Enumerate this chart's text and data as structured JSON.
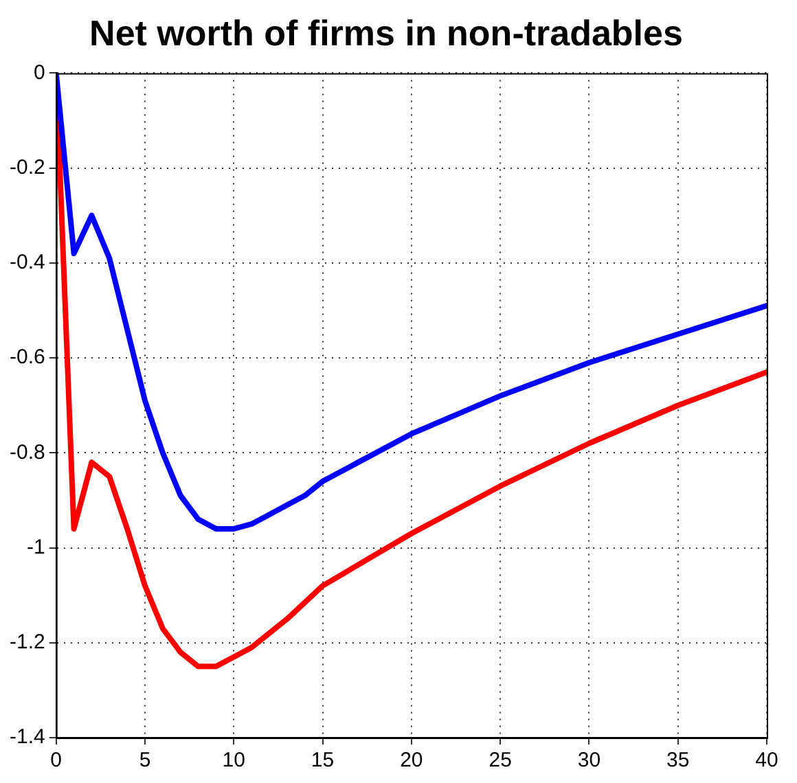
{
  "chart_data": {
    "type": "line",
    "title": "Net worth of firms in non-tradables",
    "xlim": [
      0,
      40
    ],
    "xticks": [
      0,
      5,
      10,
      15,
      20,
      25,
      30,
      35,
      40
    ],
    "ylim": [
      -1.4,
      0
    ],
    "yticks": [
      -1.4,
      -1.2,
      -1,
      -0.8,
      -0.6,
      -0.4,
      -0.2,
      0
    ],
    "grid": true,
    "line_style": "solid",
    "marker": "none",
    "series": [
      {
        "color": "#0000ff",
        "x": [
          0,
          1,
          2,
          3,
          4,
          5,
          6,
          7,
          8,
          9,
          10,
          11,
          12,
          13,
          14,
          15,
          17,
          20,
          25,
          30,
          35,
          40
        ],
        "values": [
          0,
          -0.38,
          -0.3,
          -0.39,
          -0.54,
          -0.69,
          -0.8,
          -0.89,
          -0.94,
          -0.96,
          -0.96,
          -0.95,
          -0.93,
          -0.91,
          -0.89,
          -0.86,
          -0.82,
          -0.76,
          -0.68,
          -0.61,
          -0.55,
          -0.49
        ]
      },
      {
        "color": "#ff0000",
        "x": [
          0,
          1,
          2,
          3,
          4,
          5,
          6,
          7,
          8,
          9,
          10,
          11,
          12,
          13,
          15,
          20,
          25,
          30,
          35,
          40
        ],
        "values": [
          0,
          -0.96,
          -0.82,
          -0.85,
          -0.96,
          -1.08,
          -1.17,
          -1.22,
          -1.25,
          -1.25,
          -1.23,
          -1.21,
          -1.18,
          -1.15,
          -1.08,
          -0.97,
          -0.87,
          -0.78,
          -0.7,
          -0.63
        ]
      }
    ]
  }
}
